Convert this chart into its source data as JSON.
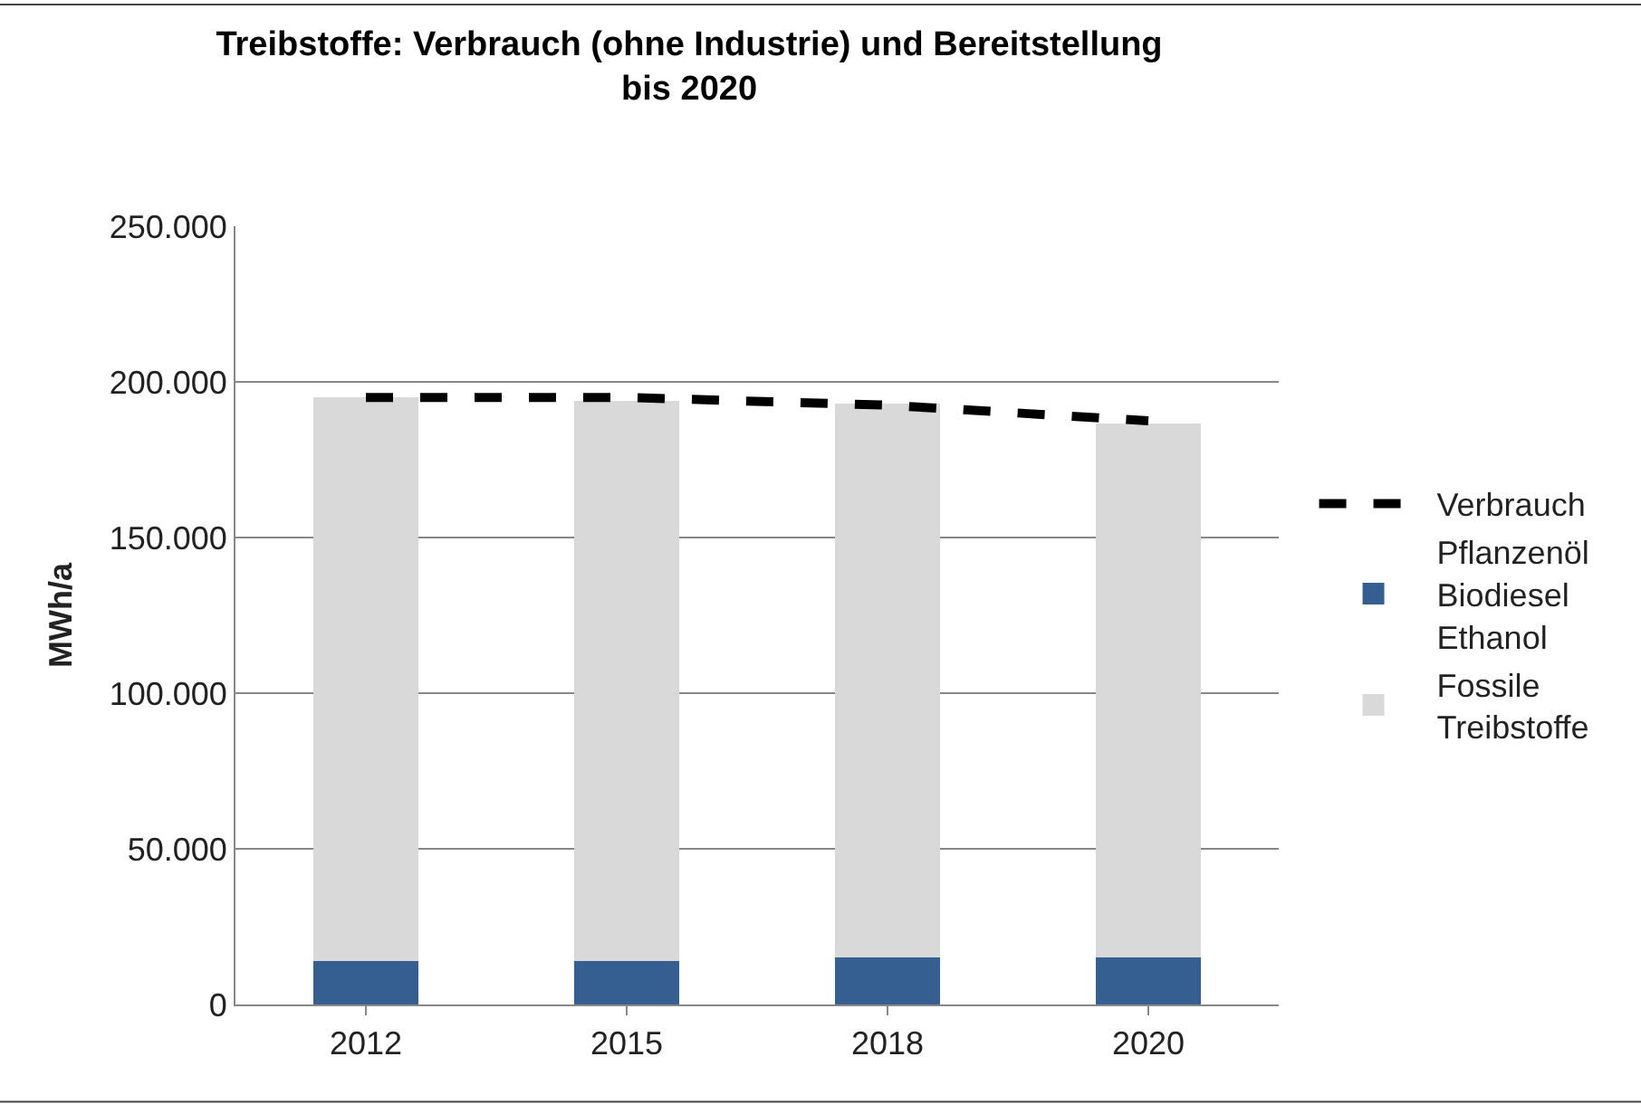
{
  "chart_data": {
    "type": "bar",
    "stacked": true,
    "title": "Treibstoffe: Verbrauch (ohne Industrie) und Bereitstellung\nbis 2020",
    "ylabel": "MWh/a",
    "categories": [
      "2012",
      "2015",
      "2018",
      "2020"
    ],
    "series": [
      {
        "name": "Pflanzenöl\nBiodiesel\nEthanol",
        "color": "#355f91",
        "values": [
          14000,
          14000,
          15000,
          15000
        ]
      },
      {
        "name": "Fossile\nTreibstoffe",
        "color": "#d9d9d9",
        "values": [
          181000,
          180000,
          178000,
          171500
        ]
      },
      {
        "name": "Verbrauch",
        "type": "line",
        "color": "#000000",
        "line_style": "dashed",
        "values": [
          195000,
          195000,
          192500,
          187500
        ]
      }
    ],
    "ylim": [
      0,
      250000
    ],
    "yticks": [
      {
        "value": 0,
        "label": "0"
      },
      {
        "value": 50000,
        "label": "50.000"
      },
      {
        "value": 100000,
        "label": "100.000"
      },
      {
        "value": 150000,
        "label": "150.000"
      },
      {
        "value": 200000,
        "label": "200.000"
      },
      {
        "value": 250000,
        "label": "250.000"
      }
    ],
    "grid": "y",
    "legend": "right"
  }
}
